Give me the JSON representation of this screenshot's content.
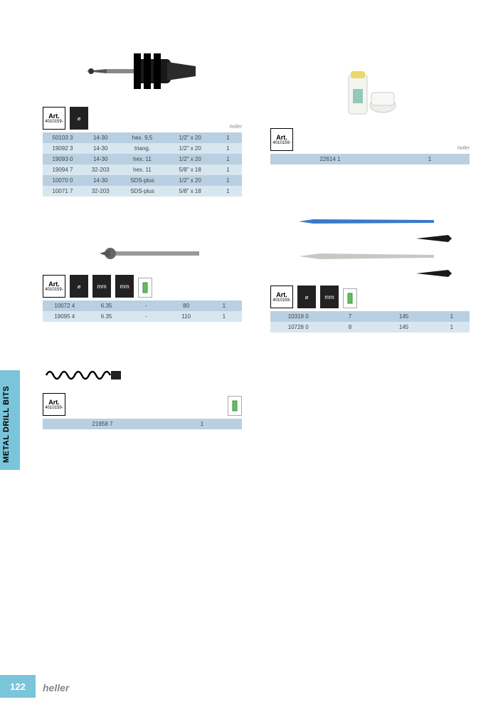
{
  "side_tab_label": "METAL DRILL BITS",
  "page_number": "122",
  "brand": "heller",
  "art_label": "Art.",
  "art_code": "4010159-",
  "colors": {
    "accent": "#7ac5d9",
    "row_light": "#d8e6f0",
    "row_dark": "#b8d0e2"
  },
  "table1": {
    "cols": [
      "art",
      "range",
      "shank",
      "thread",
      "qty"
    ],
    "rows": [
      [
        "50103 3",
        "14-30",
        "hex. 9,5",
        "1/2\" x 20",
        "1"
      ],
      [
        "19092 3",
        "14-30",
        "triang.",
        "1/2\" x 20",
        "1"
      ],
      [
        "19093 0",
        "14-30",
        "hex. 11",
        "1/2\" x 20",
        "1"
      ],
      [
        "19094 7",
        "32-203",
        "hex. 11",
        "5/8\" x 18",
        "1"
      ],
      [
        "10070 0",
        "14-30",
        "SDS-plus",
        "1/2\" x 20",
        "1"
      ],
      [
        "10071 7",
        "32-203",
        "SDS-plus",
        "5/8\" x 18",
        "1"
      ]
    ]
  },
  "table2": {
    "rows": [
      [
        "10072 4",
        "6.35",
        "-",
        "80",
        "1"
      ],
      [
        "19095 4",
        "6.35",
        "-",
        "110",
        "1"
      ]
    ]
  },
  "table3": {
    "rows": [
      [
        "21958 7",
        "1"
      ]
    ]
  },
  "table4": {
    "rows": [
      [
        "22614 1",
        "1"
      ]
    ]
  },
  "table5": {
    "rows": [
      [
        "10319 0",
        "7",
        "145",
        "1"
      ],
      [
        "10728 0",
        "8",
        "145",
        "1"
      ]
    ]
  }
}
